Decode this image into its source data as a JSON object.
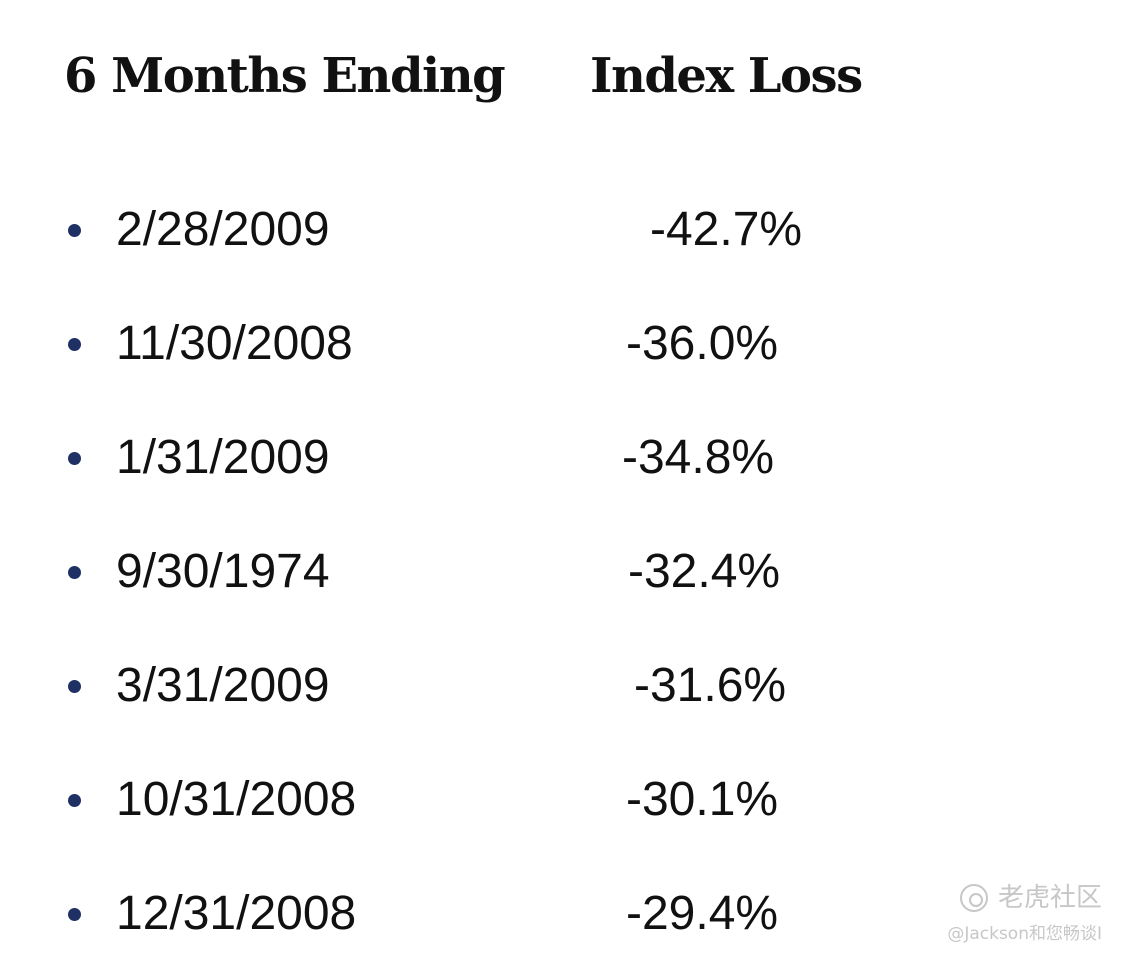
{
  "headers": {
    "date_col": "6 Months Ending",
    "loss_col": "Index Loss"
  },
  "rows": [
    {
      "date": "2/28/2009",
      "loss": "-42.7%"
    },
    {
      "date": "11/30/2008",
      "loss": "-36.0%"
    },
    {
      "date": "1/31/2009",
      "loss": "-34.8%"
    },
    {
      "date": "9/30/1974",
      "loss": "-32.4%"
    },
    {
      "date": "3/31/2009",
      "loss": "-31.6%"
    },
    {
      "date": "10/31/2008",
      "loss": "-30.1%"
    },
    {
      "date": "12/31/2008",
      "loss": "-29.4%"
    }
  ],
  "watermark": {
    "logo_icon": "tiger-logo-icon",
    "brand": "老虎社区",
    "author": "@Jackson和您畅谈I"
  }
}
